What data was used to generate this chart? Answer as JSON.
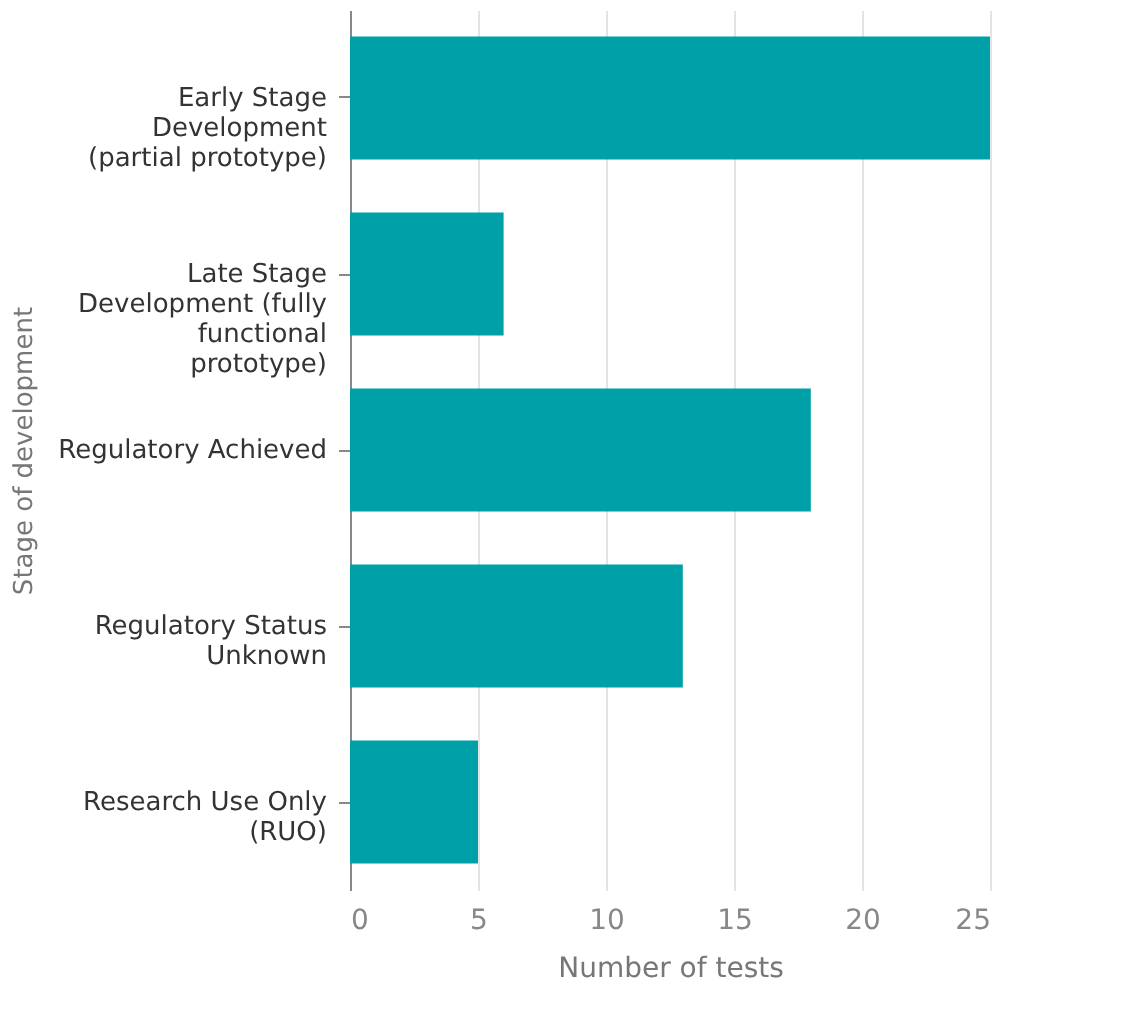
{
  "chart_data": {
    "type": "bar",
    "orientation": "horizontal",
    "xlabel": "Number of tests",
    "ylabel": "Stage of development",
    "categories": [
      "Early Stage Development (partial prototype)",
      "Late Stage Development (fully functional prototype)",
      "Regulatory Achieved",
      "Regulatory Status Unknown",
      "Research Use Only (RUO)"
    ],
    "values": [
      25,
      6,
      18,
      13,
      5
    ],
    "color": "#00a0a8",
    "xlim": [
      0,
      25
    ],
    "xticks": [
      0,
      5,
      10,
      15,
      20,
      25
    ],
    "grid": "x"
  }
}
